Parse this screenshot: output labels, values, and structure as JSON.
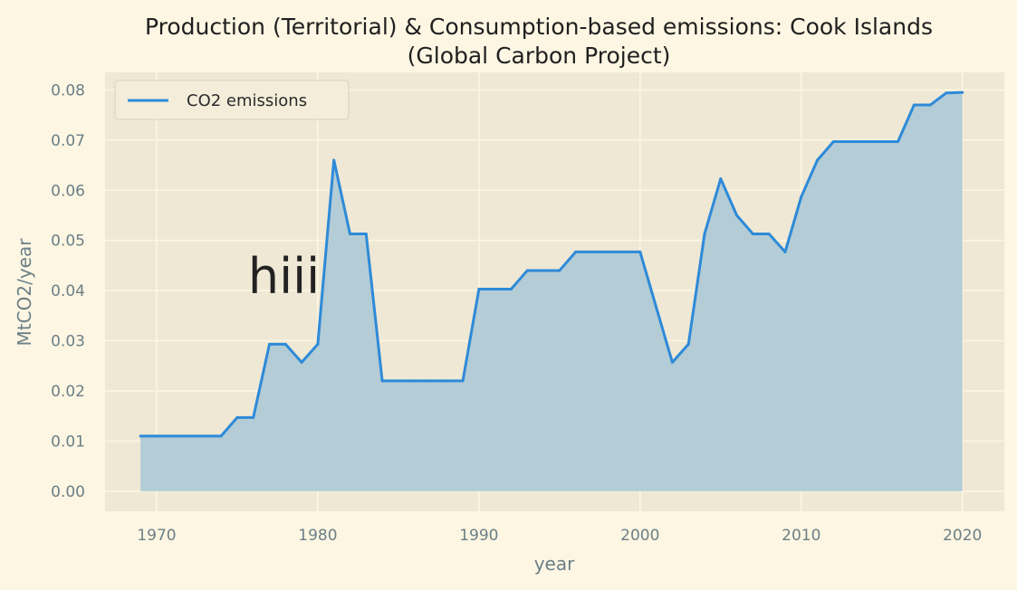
{
  "chart_data": {
    "type": "area",
    "title": "Production (Territorial) & Consumption-based emissions: Cook Islands",
    "subtitle": "(Global Carbon Project)",
    "xlabel": "year",
    "ylabel": "MtCO2/year",
    "xlim": [
      1966.8,
      2022.6
    ],
    "ylim": [
      -0.004,
      0.0835
    ],
    "xticks": [
      1970,
      1980,
      1990,
      2000,
      2010,
      2020
    ],
    "xtick_labels": [
      "1970",
      "1980",
      "1990",
      "2000",
      "2010",
      "2020"
    ],
    "yticks": [
      0.0,
      0.01,
      0.02,
      0.03,
      0.04,
      0.05,
      0.06,
      0.07,
      0.08
    ],
    "ytick_labels": [
      "0.00",
      "0.01",
      "0.02",
      "0.03",
      "0.04",
      "0.05",
      "0.06",
      "0.07",
      "0.08"
    ],
    "grid": true,
    "legend_position": "top-left",
    "series": [
      {
        "name": "CO2 emissions",
        "color": "#2e8ad8",
        "fill_color": "#a8c7d6",
        "x": [
          1969,
          1970,
          1971,
          1972,
          1973,
          1974,
          1975,
          1976,
          1977,
          1978,
          1979,
          1980,
          1981,
          1982,
          1983,
          1984,
          1985,
          1986,
          1987,
          1988,
          1989,
          1990,
          1991,
          1992,
          1993,
          1994,
          1995,
          1996,
          1997,
          1998,
          1999,
          2000,
          2001,
          2002,
          2003,
          2004,
          2005,
          2006,
          2007,
          2008,
          2009,
          2010,
          2011,
          2012,
          2013,
          2014,
          2015,
          2016,
          2017,
          2018,
          2019,
          2020
        ],
        "y": [
          0.011,
          0.011,
          0.011,
          0.011,
          0.011,
          0.011,
          0.0147,
          0.0147,
          0.0293,
          0.0293,
          0.0257,
          0.0293,
          0.066,
          0.0513,
          0.0513,
          0.022,
          0.022,
          0.022,
          0.022,
          0.022,
          0.022,
          0.0403,
          0.0403,
          0.0403,
          0.044,
          0.044,
          0.044,
          0.0477,
          0.0477,
          0.0477,
          0.0477,
          0.0477,
          0.0367,
          0.0257,
          0.0293,
          0.0513,
          0.0623,
          0.055,
          0.0513,
          0.0513,
          0.0477,
          0.0587,
          0.066,
          0.0697,
          0.0697,
          0.0697,
          0.0697,
          0.0697,
          0.077,
          0.077,
          0.0794,
          0.0795
        ]
      }
    ],
    "annotations": [
      {
        "text": "hiii",
        "x": 1977.9,
        "y": 0.0395
      }
    ]
  }
}
